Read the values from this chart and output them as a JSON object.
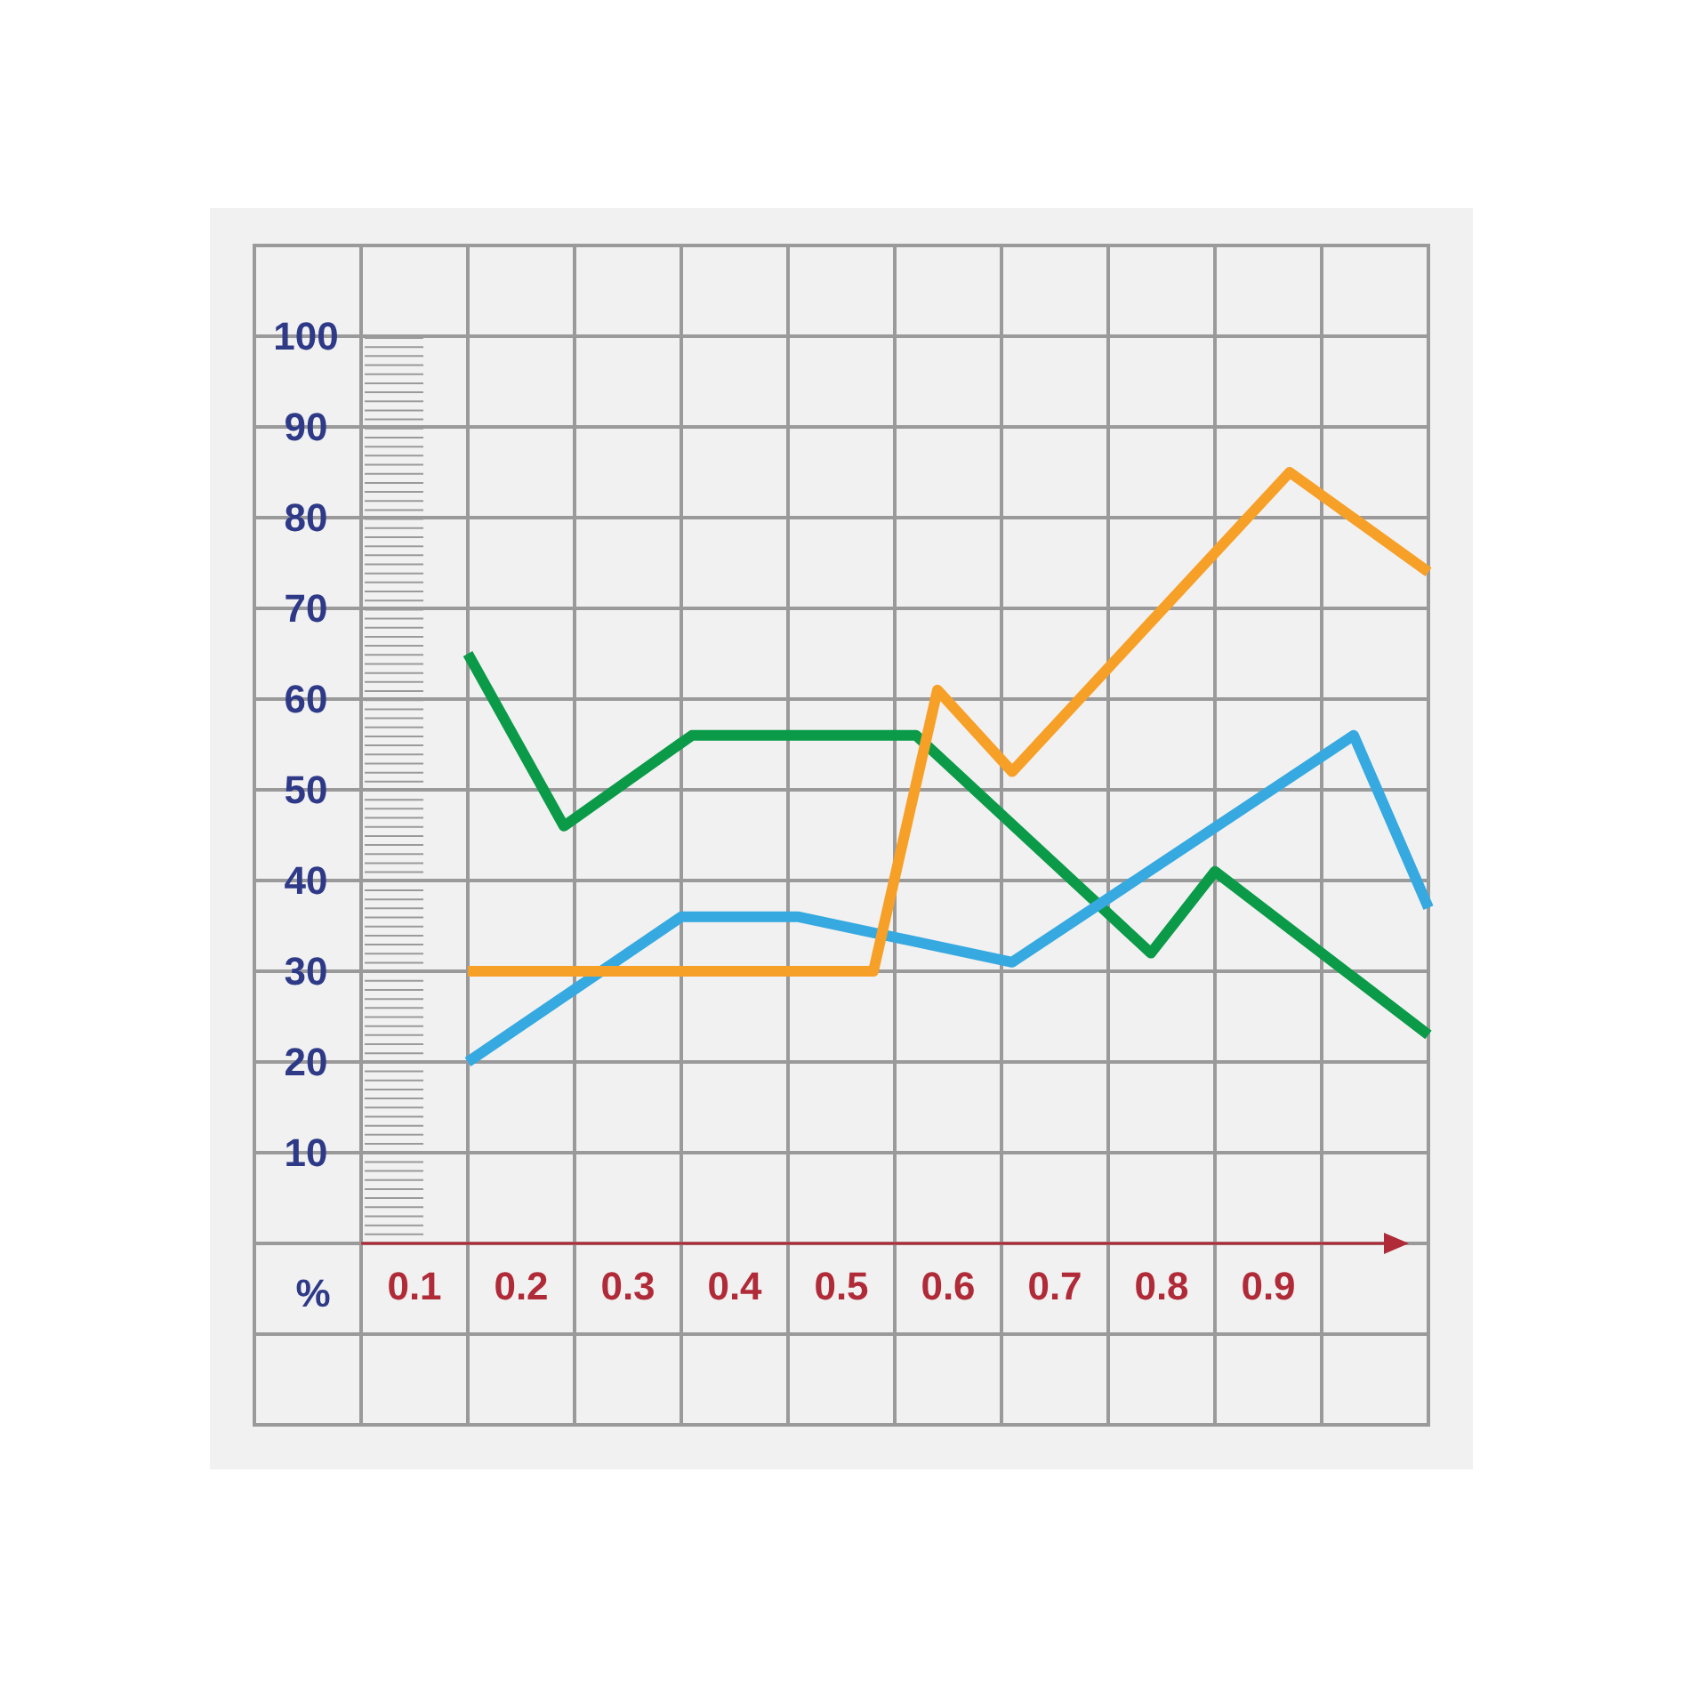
{
  "chart_data": {
    "type": "line",
    "ylabel": "%",
    "xlim": [
      -0.05,
      1.05
    ],
    "xticks": [
      0.1,
      0.2,
      0.3,
      0.4,
      0.5,
      0.6,
      0.7,
      0.8,
      0.9
    ],
    "ylim": [
      -20,
      110
    ],
    "yticks": [
      10,
      20,
      30,
      40,
      50,
      60,
      70,
      80,
      90,
      100
    ],
    "grid": true,
    "marker": "none",
    "line_style": "solid",
    "series": [
      {
        "color": "#0a9a48",
        "x": [
          0.15,
          0.24,
          0.36,
          0.57,
          0.79,
          0.85,
          1.05
        ],
        "values": [
          65,
          46,
          56,
          56,
          32,
          41,
          23
        ]
      },
      {
        "color": "#35a9e0",
        "x": [
          0.15,
          0.35,
          0.46,
          0.66,
          0.98,
          1.05
        ],
        "values": [
          20,
          36,
          36,
          31,
          56,
          37
        ]
      },
      {
        "color": "#f7a028",
        "x": [
          0.15,
          0.53,
          0.59,
          0.66,
          0.92,
          1.05
        ],
        "values": [
          30,
          30,
          61,
          52,
          85,
          74
        ]
      }
    ]
  }
}
